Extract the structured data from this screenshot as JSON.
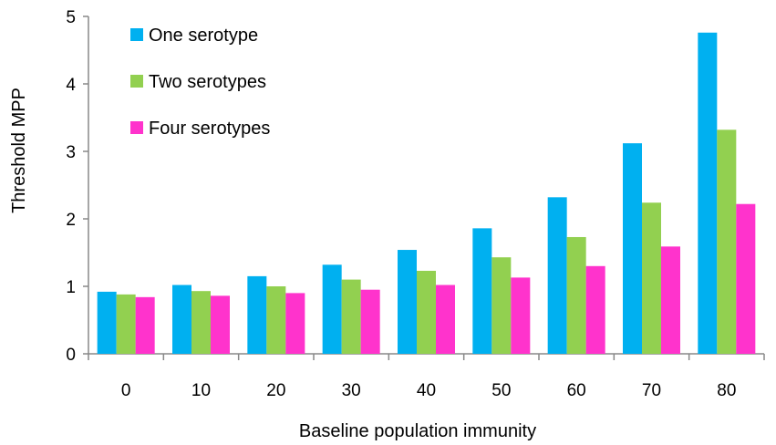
{
  "chart_data": {
    "type": "bar",
    "xlabel": "Baseline population immunity",
    "ylabel": "Threshold MPP",
    "categories": [
      "0",
      "10",
      "20",
      "30",
      "40",
      "50",
      "60",
      "70",
      "80"
    ],
    "ylim": [
      0,
      5
    ],
    "yticks": [
      "0",
      "1",
      "2",
      "3",
      "4",
      "5"
    ],
    "grid": false,
    "legend_position": "top-left",
    "series": [
      {
        "name": "One serotype",
        "color": "#00B0F0",
        "values": [
          0.92,
          1.02,
          1.15,
          1.32,
          1.54,
          1.86,
          2.32,
          3.12,
          4.76
        ]
      },
      {
        "name": "Two serotypes",
        "color": "#92D050",
        "values": [
          0.88,
          0.93,
          1.0,
          1.1,
          1.23,
          1.43,
          1.73,
          2.24,
          3.32
        ]
      },
      {
        "name": "Four serotypes",
        "color": "#FF33CC",
        "values": [
          0.84,
          0.86,
          0.9,
          0.95,
          1.02,
          1.13,
          1.3,
          1.59,
          2.22
        ]
      }
    ]
  }
}
